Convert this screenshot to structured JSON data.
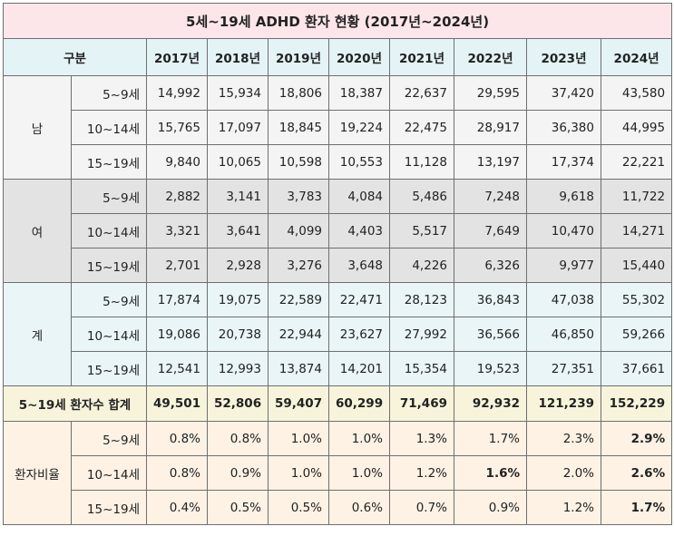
{
  "title": "5세~19세 ADHD 환자 현황 (2017년~2024년)",
  "header": {
    "category_label": "구분",
    "years": [
      "2017년",
      "2018년",
      "2019년",
      "2020년",
      "2021년",
      "2022년",
      "2023년",
      "2024년"
    ]
  },
  "groups": [
    {
      "label": "남",
      "rows": [
        {
          "age": "5~9세",
          "values": [
            "14,992",
            "15,934",
            "18,806",
            "18,387",
            "22,637",
            "29,595",
            "37,420",
            "43,580"
          ]
        },
        {
          "age": "10~14세",
          "values": [
            "15,765",
            "17,097",
            "18,845",
            "19,224",
            "22,475",
            "28,917",
            "36,380",
            "44,995"
          ]
        },
        {
          "age": "15~19세",
          "values": [
            "9,840",
            "10,065",
            "10,598",
            "10,553",
            "11,128",
            "13,197",
            "17,374",
            "22,221"
          ]
        }
      ]
    },
    {
      "label": "여",
      "rows": [
        {
          "age": "5~9세",
          "values": [
            "2,882",
            "3,141",
            "3,783",
            "4,084",
            "5,486",
            "7,248",
            "9,618",
            "11,722"
          ]
        },
        {
          "age": "10~14세",
          "values": [
            "3,321",
            "3,641",
            "4,099",
            "4,403",
            "5,517",
            "7,649",
            "10,470",
            "14,271"
          ]
        },
        {
          "age": "15~19세",
          "values": [
            "2,701",
            "2,928",
            "3,276",
            "3,648",
            "4,226",
            "6,326",
            "9,977",
            "15,440"
          ]
        }
      ]
    },
    {
      "label": "계",
      "rows": [
        {
          "age": "5~9세",
          "values": [
            "17,874",
            "19,075",
            "22,589",
            "22,471",
            "28,123",
            "36,843",
            "47,038",
            "55,302"
          ]
        },
        {
          "age": "10~14세",
          "values": [
            "19,086",
            "20,738",
            "22,944",
            "23,627",
            "27,992",
            "36,566",
            "46,850",
            "59,266"
          ]
        },
        {
          "age": "15~19세",
          "values": [
            "12,541",
            "12,993",
            "13,874",
            "14,201",
            "15,354",
            "19,523",
            "27,351",
            "37,661"
          ]
        }
      ]
    }
  ],
  "sum": {
    "label": "5~19세 환자수 합계",
    "values": [
      "49,501",
      "52,806",
      "59,407",
      "60,299",
      "71,469",
      "92,932",
      "121,239",
      "152,229"
    ]
  },
  "ratio": {
    "label": "환자비율",
    "rows": [
      {
        "age": "5~9세",
        "values": [
          "0.8%",
          "0.8%",
          "1.0%",
          "1.0%",
          "1.3%",
          "1.7%",
          "2.3%",
          "2.9%"
        ]
      },
      {
        "age": "10~14세",
        "values": [
          "0.8%",
          "0.9%",
          "1.0%",
          "1.0%",
          "1.2%",
          "1.6%",
          "2.0%",
          "2.6%"
        ]
      },
      {
        "age": "15~19세",
        "values": [
          "0.4%",
          "0.5%",
          "0.5%",
          "0.6%",
          "0.7%",
          "0.9%",
          "1.2%",
          "1.7%"
        ]
      }
    ]
  }
}
